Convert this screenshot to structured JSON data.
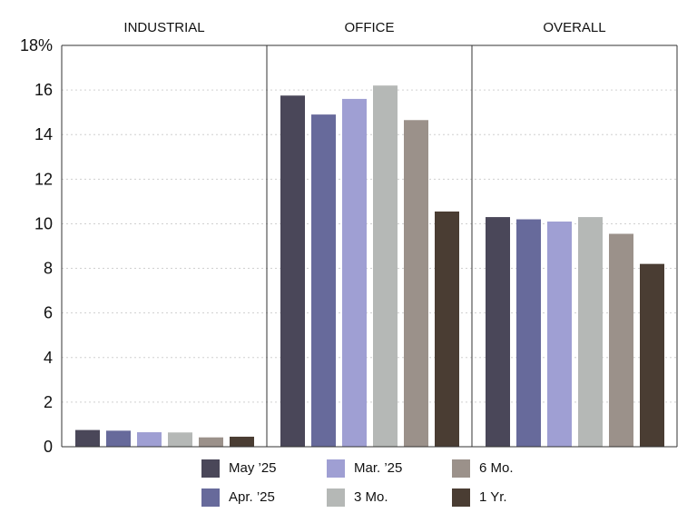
{
  "chart_data": {
    "type": "bar",
    "panels": [
      "INDUSTRIAL",
      "OFFICE",
      "OVERALL"
    ],
    "y_tick_labels": [
      "0",
      "2",
      "4",
      "6",
      "8",
      "10",
      "12",
      "14",
      "16",
      "18%"
    ],
    "ylim": [
      0,
      18
    ],
    "grid": true,
    "legend_placement": "bottom",
    "series": [
      {
        "name": "May ’25",
        "color": "#4a4759",
        "values": [
          0.75,
          15.75,
          10.3
        ]
      },
      {
        "name": "Apr. ’25",
        "color": "#676a9b",
        "values": [
          0.72,
          14.9,
          10.2
        ]
      },
      {
        "name": "Mar. ’25",
        "color": "#9f9fd3",
        "values": [
          0.65,
          15.6,
          10.1
        ]
      },
      {
        "name": "3 Mo.",
        "color": "#b5b8b6",
        "values": [
          0.64,
          16.2,
          10.3
        ]
      },
      {
        "name": "6 Mo.",
        "color": "#9b918a",
        "values": [
          0.42,
          14.65,
          9.55
        ]
      },
      {
        "name": "1 Yr.",
        "color": "#4a3d33",
        "values": [
          0.45,
          10.55,
          8.2
        ]
      }
    ]
  },
  "legend": {
    "items": [
      {
        "label": "May ’25"
      },
      {
        "label": "Apr. ’25"
      },
      {
        "label": "Mar. ’25"
      },
      {
        "label": "3 Mo."
      },
      {
        "label": "6 Mo."
      },
      {
        "label": "1 Yr."
      }
    ]
  }
}
